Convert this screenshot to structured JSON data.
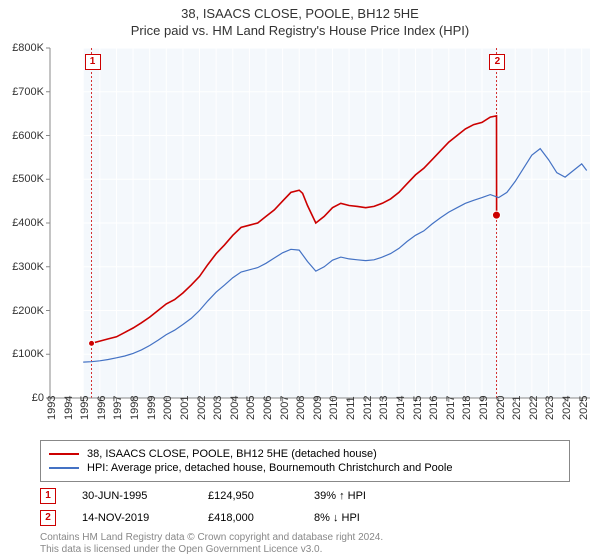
{
  "title": "38, ISAACS CLOSE, POOLE, BH12 5HE",
  "subtitle": "Price paid vs. HM Land Registry's House Price Index (HPI)",
  "chart": {
    "type": "line",
    "background_color": "#ffffff",
    "plot_bg": "#f4f8fc",
    "grid_color": "#ffffff",
    "axis_color": "#888888",
    "ylim": [
      0,
      800000
    ],
    "ylabel_format": "£{v}K",
    "yticks": [
      0,
      100000,
      200000,
      300000,
      400000,
      500000,
      600000,
      700000,
      800000
    ],
    "ylabels": [
      "£0",
      "£100K",
      "£200K",
      "£300K",
      "£400K",
      "£500K",
      "£600K",
      "£700K",
      "£800K"
    ],
    "xlim": [
      1993,
      2025.5
    ],
    "xticks": [
      1993,
      1994,
      1995,
      1996,
      1997,
      1998,
      1999,
      2000,
      2001,
      2002,
      2003,
      2004,
      2005,
      2006,
      2007,
      2008,
      2009,
      2010,
      2011,
      2012,
      2013,
      2014,
      2015,
      2016,
      2017,
      2018,
      2019,
      2020,
      2021,
      2022,
      2023,
      2024,
      2025
    ],
    "series": [
      {
        "name": "property",
        "label": "38, ISAACS CLOSE, POOLE, BH12 5HE (detached house)",
        "color": "#cc0000",
        "line_width": 1.6,
        "points": [
          [
            1995.5,
            124950
          ],
          [
            1996,
            130000
          ],
          [
            1996.5,
            135000
          ],
          [
            1997,
            140000
          ],
          [
            1997.5,
            150000
          ],
          [
            1998,
            160000
          ],
          [
            1998.5,
            172000
          ],
          [
            1999,
            185000
          ],
          [
            1999.5,
            200000
          ],
          [
            2000,
            215000
          ],
          [
            2000.5,
            225000
          ],
          [
            2001,
            240000
          ],
          [
            2001.5,
            258000
          ],
          [
            2002,
            278000
          ],
          [
            2002.5,
            305000
          ],
          [
            2003,
            330000
          ],
          [
            2003.5,
            350000
          ],
          [
            2004,
            372000
          ],
          [
            2004.5,
            390000
          ],
          [
            2005,
            395000
          ],
          [
            2005.5,
            400000
          ],
          [
            2006,
            415000
          ],
          [
            2006.5,
            430000
          ],
          [
            2007,
            450000
          ],
          [
            2007.5,
            470000
          ],
          [
            2008,
            475000
          ],
          [
            2008.2,
            468000
          ],
          [
            2008.5,
            440000
          ],
          [
            2009,
            400000
          ],
          [
            2009.5,
            415000
          ],
          [
            2010,
            435000
          ],
          [
            2010.5,
            445000
          ],
          [
            2011,
            440000
          ],
          [
            2011.5,
            438000
          ],
          [
            2012,
            435000
          ],
          [
            2012.5,
            438000
          ],
          [
            2013,
            445000
          ],
          [
            2013.5,
            455000
          ],
          [
            2014,
            470000
          ],
          [
            2014.5,
            490000
          ],
          [
            2015,
            510000
          ],
          [
            2015.5,
            525000
          ],
          [
            2016,
            545000
          ],
          [
            2016.5,
            565000
          ],
          [
            2017,
            585000
          ],
          [
            2017.5,
            600000
          ],
          [
            2018,
            615000
          ],
          [
            2018.5,
            625000
          ],
          [
            2019,
            630000
          ],
          [
            2019.5,
            642000
          ],
          [
            2019.87,
            645000
          ],
          [
            2019.88,
            418000
          ]
        ]
      },
      {
        "name": "hpi",
        "label": "HPI: Average price, detached house, Bournemouth Christchurch and Poole",
        "color": "#4472c4",
        "line_width": 1.2,
        "points": [
          [
            1995,
            82000
          ],
          [
            1995.5,
            83000
          ],
          [
            1996,
            85000
          ],
          [
            1996.5,
            88000
          ],
          [
            1997,
            92000
          ],
          [
            1997.5,
            96000
          ],
          [
            1998,
            102000
          ],
          [
            1998.5,
            110000
          ],
          [
            1999,
            120000
          ],
          [
            1999.5,
            132000
          ],
          [
            2000,
            145000
          ],
          [
            2000.5,
            155000
          ],
          [
            2001,
            168000
          ],
          [
            2001.5,
            182000
          ],
          [
            2002,
            200000
          ],
          [
            2002.5,
            222000
          ],
          [
            2003,
            242000
          ],
          [
            2003.5,
            258000
          ],
          [
            2004,
            275000
          ],
          [
            2004.5,
            288000
          ],
          [
            2005,
            293000
          ],
          [
            2005.5,
            298000
          ],
          [
            2006,
            308000
          ],
          [
            2006.5,
            320000
          ],
          [
            2007,
            332000
          ],
          [
            2007.5,
            340000
          ],
          [
            2008,
            338000
          ],
          [
            2008.5,
            312000
          ],
          [
            2009,
            290000
          ],
          [
            2009.5,
            300000
          ],
          [
            2010,
            315000
          ],
          [
            2010.5,
            322000
          ],
          [
            2011,
            318000
          ],
          [
            2011.5,
            316000
          ],
          [
            2012,
            314000
          ],
          [
            2012.5,
            316000
          ],
          [
            2013,
            322000
          ],
          [
            2013.5,
            330000
          ],
          [
            2014,
            342000
          ],
          [
            2014.5,
            358000
          ],
          [
            2015,
            372000
          ],
          [
            2015.5,
            382000
          ],
          [
            2016,
            398000
          ],
          [
            2016.5,
            412000
          ],
          [
            2017,
            425000
          ],
          [
            2017.5,
            435000
          ],
          [
            2018,
            445000
          ],
          [
            2018.5,
            452000
          ],
          [
            2019,
            458000
          ],
          [
            2019.5,
            465000
          ],
          [
            2020,
            458000
          ],
          [
            2020.5,
            470000
          ],
          [
            2021,
            495000
          ],
          [
            2021.5,
            525000
          ],
          [
            2022,
            555000
          ],
          [
            2022.5,
            570000
          ],
          [
            2023,
            545000
          ],
          [
            2023.5,
            515000
          ],
          [
            2024,
            505000
          ],
          [
            2024.5,
            520000
          ],
          [
            2025,
            535000
          ],
          [
            2025.3,
            520000
          ]
        ]
      }
    ],
    "markers": [
      {
        "n": "1",
        "year": 1995.5,
        "value": 124950,
        "guide": true,
        "color": "#cc0000"
      },
      {
        "n": "2",
        "year": 2019.87,
        "value": 418000,
        "guide": true,
        "color": "#cc0000",
        "dot": true
      }
    ]
  },
  "legend": {
    "rows": [
      {
        "color": "#cc0000",
        "label": "38, ISAACS CLOSE, POOLE, BH12 5HE (detached house)"
      },
      {
        "color": "#4472c4",
        "label": "HPI: Average price, detached house, Bournemouth Christchurch and Poole"
      }
    ]
  },
  "sales": [
    {
      "n": "1",
      "color": "#cc0000",
      "date": "30-JUN-1995",
      "price": "£124,950",
      "hpi": "39% ↑ HPI"
    },
    {
      "n": "2",
      "color": "#cc0000",
      "date": "14-NOV-2019",
      "price": "£418,000",
      "hpi": "8% ↓ HPI"
    }
  ],
  "footer": {
    "line1": "Contains HM Land Registry data © Crown copyright and database right 2024.",
    "line2": "This data is licensed under the Open Government Licence v3.0."
  }
}
